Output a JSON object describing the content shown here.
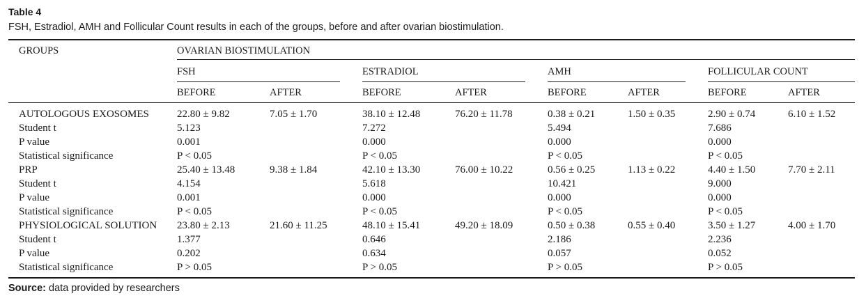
{
  "table": {
    "label": "Table 4",
    "caption": "FSH, Estradiol, AMH and Follicular Count results in each of the groups, before and after ovarian biostimulation.",
    "header": {
      "groups": "GROUPS",
      "super": "OVARIAN BIOSTIMULATION",
      "measures": [
        "FSH",
        "ESTRADIOL",
        "AMH",
        "FOLLICULAR COUNT"
      ],
      "before": "BEFORE",
      "after": "AFTER"
    },
    "rows": [
      {
        "label": "AUTOLOGOUS EXOSOMES",
        "cells": [
          "22.80 ± 9.82",
          "7.05 ± 1.70",
          "38.10 ± 12.48",
          "76.20 ± 11.78",
          "0.38 ± 0.21",
          "1.50 ± 0.35",
          "2.90 ± 0.74",
          "6.10 ± 1.52"
        ]
      },
      {
        "label": "Student t",
        "cells": [
          "5.123",
          "",
          "7.272",
          "",
          "5.494",
          "",
          "7.686",
          ""
        ]
      },
      {
        "label": "P value",
        "cells": [
          "0.001",
          "",
          "0.000",
          "",
          "0.000",
          "",
          "0.000",
          ""
        ]
      },
      {
        "label": "Statistical significance",
        "cells": [
          "P < 0.05",
          "",
          "P < 0.05",
          "",
          "P < 0.05",
          "",
          "P < 0.05",
          ""
        ]
      },
      {
        "label": "PRP",
        "cells": [
          "25.40 ± 13.48",
          "9.38 ± 1.84",
          "42.10 ± 13.30",
          "76.00 ± 10.22",
          "0.56 ± 0.25",
          "1.13 ± 0.22",
          "4.40 ± 1.50",
          "7.70 ± 2.11"
        ]
      },
      {
        "label": "Student t",
        "cells": [
          "4.154",
          "",
          "5.618",
          "",
          "10.421",
          "",
          "9.000",
          ""
        ]
      },
      {
        "label": "P value",
        "cells": [
          "0.001",
          "",
          "0.000",
          "",
          "0.000",
          "",
          "0.000",
          ""
        ]
      },
      {
        "label": "Statistical significance",
        "cells": [
          "P < 0.05",
          "",
          "P < 0.05",
          "",
          "P < 0.05",
          "",
          "P < 0.05",
          ""
        ]
      },
      {
        "label": "PHYSIOLOGICAL SOLUTION",
        "cells": [
          "23.80 ± 2.13",
          "21.60 ± 11.25",
          "48.10 ± 15.41",
          "49.20 ± 18.09",
          "0.50 ± 0.38",
          "0.55 ± 0.40",
          "3.50 ± 1.27",
          "4.00 ± 1.70"
        ]
      },
      {
        "label": "Student t",
        "cells": [
          "1.377",
          "",
          "0.646",
          "",
          "2.186",
          "",
          "2.236",
          ""
        ]
      },
      {
        "label": "P value",
        "cells": [
          "0.202",
          "",
          "0.634",
          "",
          "0.057",
          "",
          "0.052",
          ""
        ]
      },
      {
        "label": "Statistical significance",
        "cells": [
          "P > 0.05",
          "",
          "P > 0.05",
          "",
          "P > 0.05",
          "",
          "P > 0.05",
          ""
        ]
      }
    ],
    "source": {
      "label": "Source:",
      "text": "data provided by researchers"
    }
  }
}
